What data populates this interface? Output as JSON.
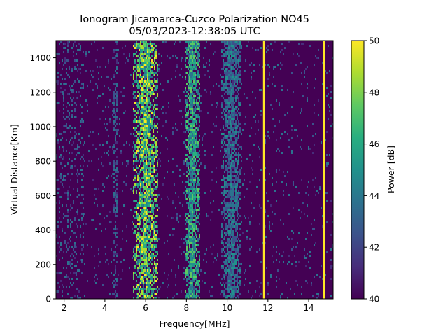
{
  "chart_data": {
    "type": "heatmap",
    "title_line1": "Ionogram Jicamarca-Cuzco Polarization NO45",
    "title_line2": "05/03/2023-12:38:05 UTC",
    "xlabel": "Frequency[MHz]",
    "ylabel": "Virtual Distance[Km]",
    "xlim": [
      1.6,
      15.2
    ],
    "ylim": [
      0,
      1500
    ],
    "xticks": [
      2,
      4,
      6,
      8,
      10,
      12,
      14
    ],
    "yticks": [
      0,
      200,
      400,
      600,
      800,
      1000,
      1200,
      1400
    ],
    "colorbar": {
      "label": "Power [dB]",
      "range": [
        40,
        50
      ],
      "ticks": [
        40,
        42,
        44,
        46,
        48,
        50
      ],
      "colormap": "viridis"
    },
    "grid": false,
    "features": [
      {
        "name": "strong-echo-band",
        "freq_range_mhz": [
          5.4,
          6.6
        ],
        "level_db": 50
      },
      {
        "name": "echo-band-8mhz",
        "freq_range_mhz": [
          7.9,
          8.7
        ],
        "level_db": 48
      },
      {
        "name": "echo-band-10mhz",
        "freq_range_mhz": [
          9.7,
          10.7
        ],
        "level_db": 45
      },
      {
        "name": "interference-line",
        "freq_mhz": 11.8,
        "level_db": 50
      },
      {
        "name": "interference-line",
        "freq_mhz": 14.75,
        "level_db": 50
      }
    ]
  }
}
